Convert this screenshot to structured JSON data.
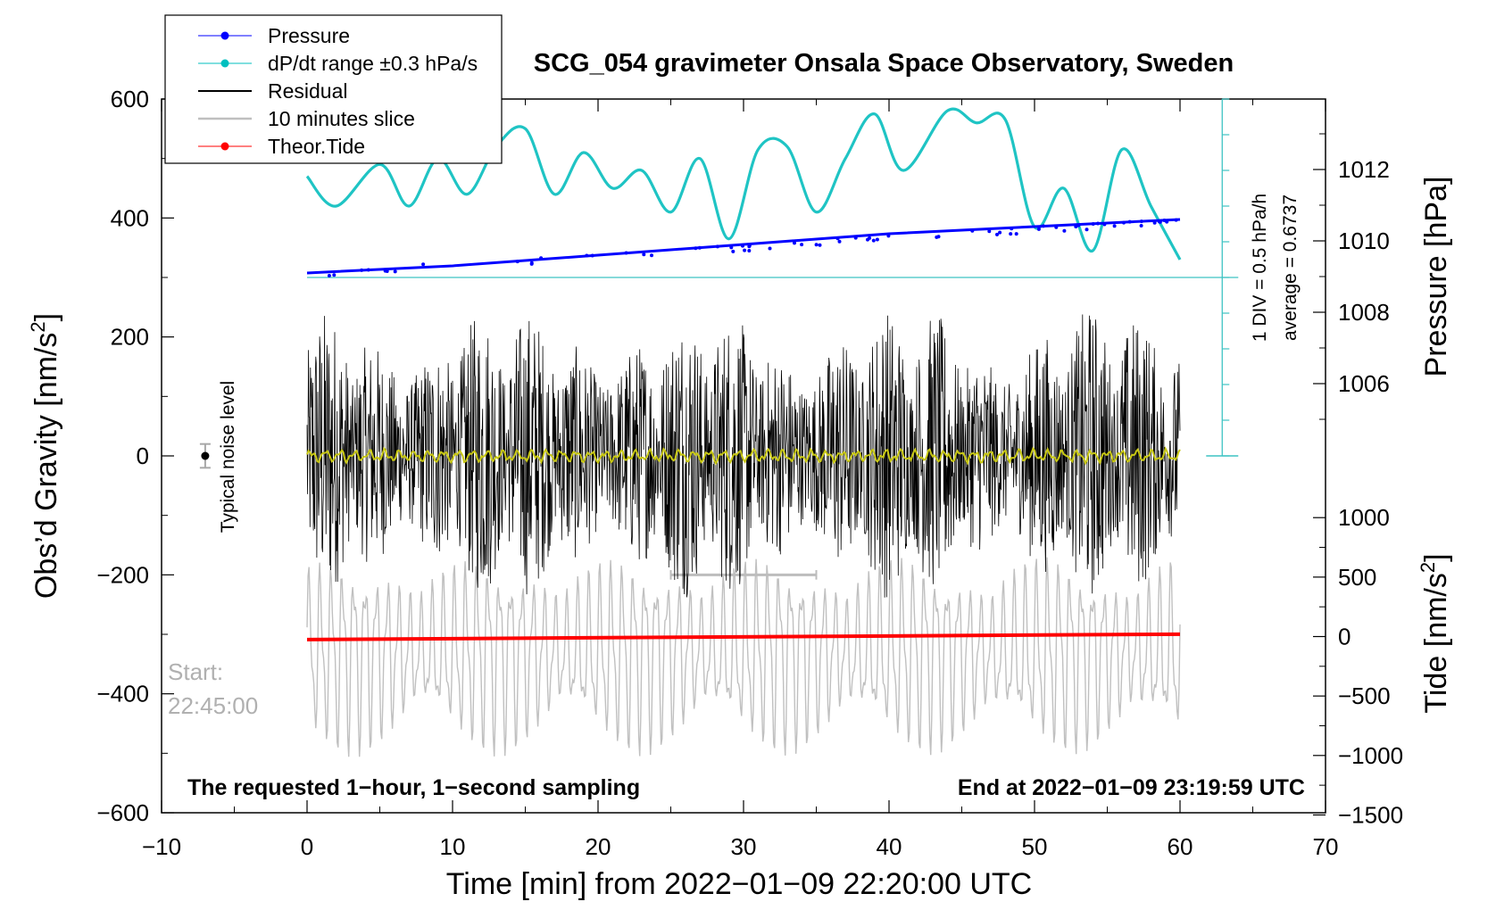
{
  "chart_data": {
    "type": "line",
    "title": "SCG_054 gravimeter Onsala Space Observatory, Sweden",
    "xlabel": "Time [min] from 2022−01−09 22:20:00 UTC",
    "ylabel_left": "Obs’d Gravity [nm/s",
    "ylabel_left_sup": "2",
    "ylabel_left_end": "]",
    "ylabel_pressure": "Pressure [hPa]",
    "ylabel_tide": "Tide [nm/s",
    "ylabel_tide_sup": "2",
    "ylabel_tide_end": "]",
    "xlim": [
      -10,
      70
    ],
    "ylim": [
      -600,
      600
    ],
    "x_ticks": [
      -10,
      0,
      10,
      20,
      30,
      40,
      50,
      60,
      70
    ],
    "x_tick_labels": [
      "−10",
      "0",
      "10",
      "20",
      "30",
      "40",
      "50",
      "60",
      "70"
    ],
    "y_ticks": [
      -600,
      -400,
      -200,
      0,
      200,
      400,
      600
    ],
    "y_tick_labels": [
      "−600",
      "−400",
      "−200",
      "0",
      "200",
      "400",
      "600"
    ],
    "pressure_ticks": [
      1006,
      1008,
      1010,
      1012
    ],
    "pressure_tick_labels": [
      "1006",
      "1008",
      "1010",
      "1012"
    ],
    "tide_ticks": [
      -1500,
      -1000,
      -500,
      0,
      500,
      1000
    ],
    "tide_tick_labels": [
      "−1500",
      "−1000",
      "−500",
      "0",
      "500",
      "1000"
    ],
    "legend": [
      {
        "name": "Pressure",
        "color": "#0000ff",
        "marker": true
      },
      {
        "name": "dP/dt range ±0.3 hPa/s",
        "color": "#00bfbf",
        "marker": true
      },
      {
        "name": "Residual",
        "color": "#000000",
        "marker": false
      },
      {
        "name": "10 minutes slice",
        "color": "#bfbfbf",
        "marker": false
      },
      {
        "name": "Theor.Tide",
        "color": "#ff0000",
        "marker": true
      }
    ],
    "series": [
      {
        "name": "Pressure",
        "unit": "hPa",
        "x": [
          0,
          10,
          20,
          30,
          40,
          50,
          60
        ],
        "values": [
          1009.1,
          1009.3,
          1009.6,
          1009.9,
          1010.2,
          1010.4,
          1010.6
        ]
      },
      {
        "name": "dP/dt range ±0.3 hPa/s",
        "unit": "nm/s2 (plot scale)",
        "x": [
          0,
          2,
          5,
          7,
          9,
          11,
          13,
          15,
          17,
          19,
          21,
          23,
          25,
          27,
          29,
          31,
          33,
          35,
          37,
          39,
          41,
          44,
          46,
          48,
          50,
          52,
          54,
          56,
          58,
          60
        ],
        "values": [
          470,
          420,
          490,
          420,
          500,
          440,
          520,
          550,
          440,
          510,
          450,
          480,
          410,
          500,
          365,
          515,
          520,
          410,
          500,
          575,
          480,
          580,
          560,
          565,
          385,
          450,
          345,
          515,
          420,
          330
        ]
      },
      {
        "name": "Residual",
        "unit": "nm/s2",
        "x": [
          0,
          60
        ],
        "amplitude_range": [
          -245,
          255
        ]
      },
      {
        "name": "10 minutes slice",
        "unit": "nm/s2 (display)",
        "x": [
          25,
          35
        ],
        "values": [
          -200,
          -200
        ]
      },
      {
        "name": "Theor.Tide",
        "unit": "nm/s2",
        "x": [
          0,
          60
        ],
        "values": [
          -25,
          20
        ]
      }
    ],
    "typical_noise_level": {
      "x": -7,
      "value": 0,
      "error": 20
    }
  },
  "annotations": {
    "pressure_scale": "1 DIV = 0.5 hPa/h",
    "pressure_average": "average = 0.6737",
    "noise_label": "Typical noise level",
    "start_label": "Start:",
    "start_time": "22:45:00",
    "bottom_left": "The requested 1−hour, 1−second sampling",
    "bottom_right": "End at 2022−01−09 23:19:59 UTC"
  }
}
